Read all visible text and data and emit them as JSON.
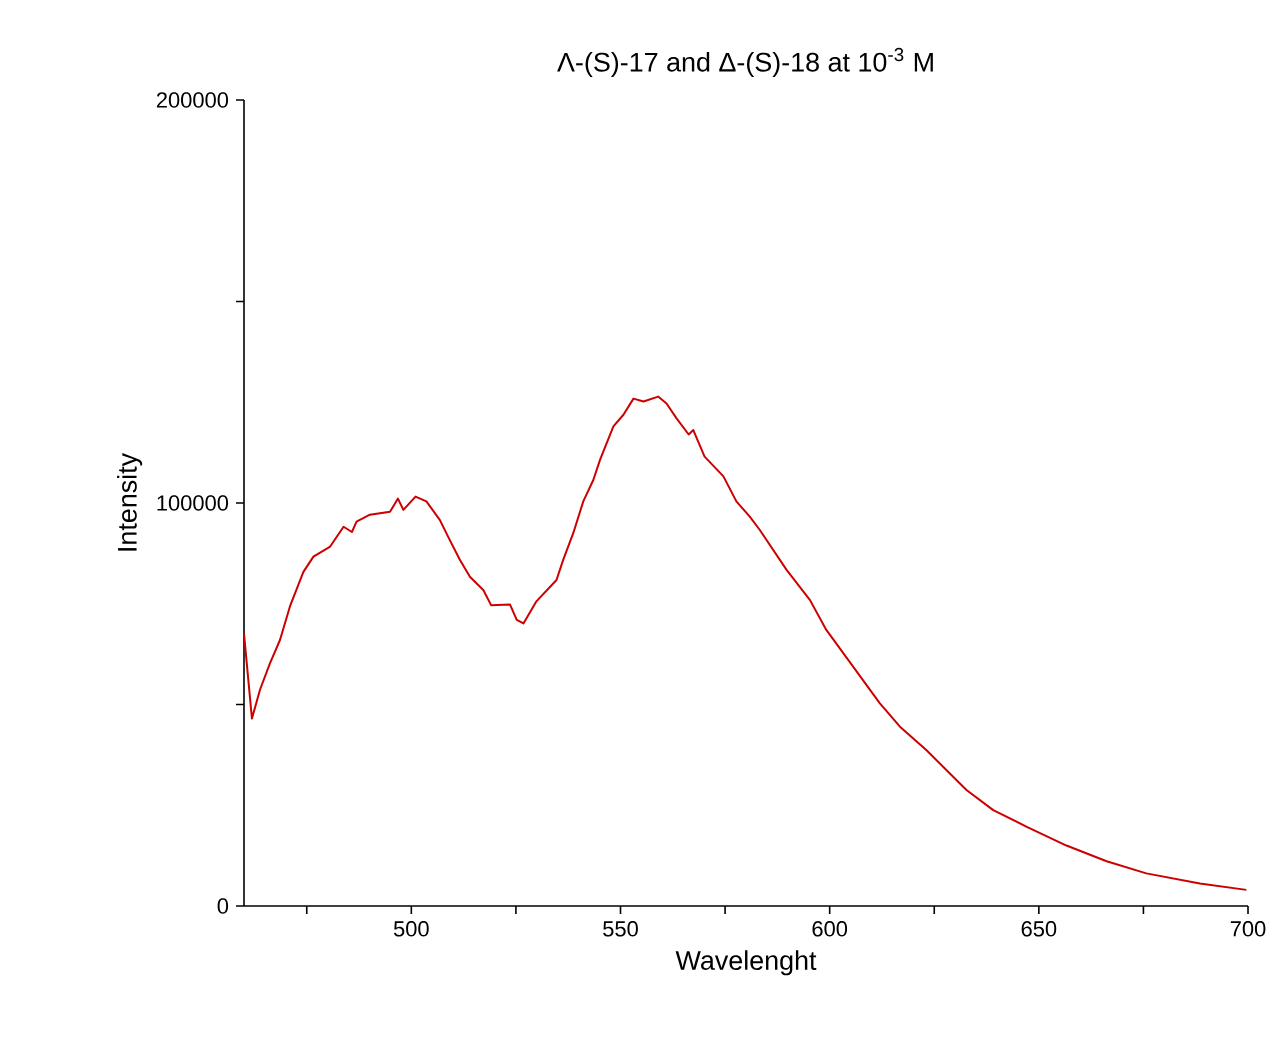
{
  "chart_data": {
    "type": "line",
    "title": "Λ-(S)-17 and Δ-(S)-18 at 10$^{-3}$ M",
    "xlabel": "Wavelenght",
    "ylabel": "Intensity",
    "x": [
      460,
      461.9,
      463.8,
      466.2,
      468.6,
      471,
      474.2,
      476.6,
      480.6,
      483.8,
      485.8,
      486.9,
      490.1,
      494.9,
      496.8,
      498.1,
      501,
      503.6,
      506.8,
      509.2,
      511.6,
      514,
      517.2,
      519.1,
      523.6,
      525.2,
      526.8,
      529.9,
      534.7,
      536.3,
      538.7,
      541.1,
      543.5,
      545.1,
      548.3,
      550.7,
      553.1,
      555.5,
      559,
      561,
      563.4,
      566.3,
      567.4,
      570.1,
      574.6,
      577.7,
      580.9,
      583.3,
      589.7,
      595.3,
      599.2,
      605.6,
      612,
      616.8,
      623.1,
      632.7,
      639.1,
      647,
      656.6,
      666.2,
      675.7,
      688.5,
      699.6
    ],
    "series": [
      {
        "color": "#cc0000",
        "values": [
          67600,
          46500,
          53600,
          60200,
          66000,
          74400,
          82900,
          86700,
          89200,
          94100,
          92800,
          95400,
          97100,
          97800,
          101100,
          98300,
          101600,
          100400,
          95800,
          90800,
          85900,
          81700,
          78400,
          74600,
          74800,
          71000,
          70100,
          75600,
          80900,
          85900,
          92500,
          100400,
          105700,
          110700,
          119000,
          121900,
          125900,
          125200,
          126400,
          124700,
          121000,
          117000,
          118100,
          111500,
          106600,
          100400,
          96600,
          93300,
          83400,
          75900,
          68500,
          59400,
          50300,
          44500,
          38700,
          28800,
          23800,
          19700,
          15000,
          11100,
          8100,
          5600,
          4000
        ]
      }
    ],
    "xlim": [
      460,
      700
    ],
    "ylim": [
      0,
      200000
    ],
    "xticks": [
      {
        "value": 475,
        "label": null
      },
      500,
      {
        "value": 525,
        "label": null
      },
      550,
      {
        "value": 575,
        "label": null
      },
      600,
      {
        "value": 625,
        "label": null
      },
      650,
      {
        "value": 675,
        "label": null
      },
      700
    ],
    "yticks": [
      0,
      {
        "value": 50000,
        "label": null
      },
      100000,
      {
        "value": 150000,
        "label": null
      },
      200000
    ],
    "grid": false,
    "marker": "none",
    "line_style": "solid"
  }
}
